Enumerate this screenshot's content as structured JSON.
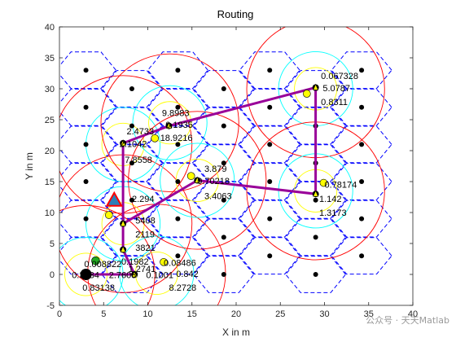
{
  "chart_data": {
    "type": "scatter",
    "title": "Routing",
    "xlabel": "X in m",
    "ylabel": "Y in m",
    "xlim": [
      0,
      40
    ],
    "ylim": [
      -5,
      40
    ],
    "xticks": [
      "0",
      "5",
      "10",
      "15",
      "20",
      "25",
      "30",
      "35",
      "40"
    ],
    "yticks": [
      "-5",
      "0",
      "5",
      "10",
      "15",
      "20",
      "25",
      "30",
      "35",
      "40"
    ],
    "grid": false,
    "colors": {
      "hex": "#0000ff",
      "range_outer": "#ff0000",
      "range_mid": "#00ffff",
      "range_inner": "#ffff00",
      "route": "#990099",
      "node": "#000000",
      "sink": "#2c7fb8",
      "sink_outline": "#ff0000",
      "aux_node": "#22aa22"
    },
    "hexagon_centers": [
      [
        3,
        33
      ],
      [
        3,
        27
      ],
      [
        3,
        21
      ],
      [
        3,
        15
      ],
      [
        3,
        9
      ],
      [
        3,
        3
      ],
      [
        8.2,
        30
      ],
      [
        8.2,
        24
      ],
      [
        8.2,
        18
      ],
      [
        8.2,
        12
      ],
      [
        8.2,
        6
      ],
      [
        8.2,
        0
      ],
      [
        13.4,
        33
      ],
      [
        13.4,
        27
      ],
      [
        13.4,
        21
      ],
      [
        13.4,
        15
      ],
      [
        13.4,
        9
      ],
      [
        13.4,
        3
      ],
      [
        18.6,
        30
      ],
      [
        18.6,
        24
      ],
      [
        18.6,
        18
      ],
      [
        18.6,
        12
      ],
      [
        18.6,
        6
      ],
      [
        18.6,
        0
      ],
      [
        23.8,
        33
      ],
      [
        23.8,
        27
      ],
      [
        23.8,
        21
      ],
      [
        23.8,
        15
      ],
      [
        23.8,
        9
      ],
      [
        23.8,
        3
      ],
      [
        29,
        30
      ],
      [
        29,
        24
      ],
      [
        29,
        18
      ],
      [
        29,
        12
      ],
      [
        29,
        6
      ],
      [
        29,
        0
      ],
      [
        34.2,
        33
      ],
      [
        34.2,
        27
      ],
      [
        34.2,
        21
      ],
      [
        34.2,
        15
      ],
      [
        34.2,
        9
      ],
      [
        34.2,
        3
      ]
    ],
    "node_points": [
      [
        3,
        33
      ],
      [
        3,
        27
      ],
      [
        3,
        21
      ],
      [
        3,
        15
      ],
      [
        3,
        9
      ],
      [
        8.2,
        30
      ],
      [
        8.2,
        24
      ],
      [
        8.2,
        18
      ],
      [
        8.2,
        12
      ],
      [
        13.4,
        33
      ],
      [
        13.4,
        27
      ],
      [
        13.4,
        21
      ],
      [
        13.4,
        15
      ],
      [
        13.4,
        9
      ],
      [
        13.4,
        3
      ],
      [
        18.6,
        30
      ],
      [
        18.6,
        24
      ],
      [
        18.6,
        18
      ],
      [
        18.6,
        12
      ],
      [
        18.6,
        6
      ],
      [
        18.6,
        0
      ],
      [
        23.8,
        33
      ],
      [
        23.8,
        27
      ],
      [
        23.8,
        21
      ],
      [
        23.8,
        15
      ],
      [
        23.8,
        9
      ],
      [
        23.8,
        3
      ],
      [
        29,
        30
      ],
      [
        29,
        24
      ],
      [
        29,
        18
      ],
      [
        29,
        12
      ],
      [
        29,
        6
      ],
      [
        29,
        0
      ],
      [
        34.2,
        33
      ],
      [
        34.2,
        27
      ],
      [
        34.2,
        21
      ],
      [
        34.2,
        15
      ],
      [
        34.2,
        9
      ],
      [
        34.2,
        3
      ]
    ],
    "sink": [
      6.2,
      12
    ],
    "range_circles": [
      {
        "center": [
          3,
          0
        ],
        "radii": [
          7.8,
          4.2,
          2.4
        ]
      },
      {
        "center": [
          11,
          0.2
        ],
        "radii": [
          7.8,
          4.2,
          2.4
        ]
      },
      {
        "center": [
          7.2,
          8.2
        ],
        "radii": [
          7.8,
          4.2,
          2.4
        ]
      },
      {
        "center": [
          7.2,
          21
        ],
        "radii": [
          7.8,
          4.2,
          2.4
        ]
      },
      {
        "center": [
          12.5,
          24.5
        ],
        "radii": [
          7.8,
          4.2,
          2.4
        ]
      },
      {
        "center": [
          15.6,
          15.2
        ],
        "radii": [
          7.8,
          4.2,
          2.4
        ]
      },
      {
        "center": [
          29,
          30
        ],
        "radii": [
          7.8,
          4.2,
          2.4
        ]
      },
      {
        "center": [
          29,
          13.5
        ],
        "radii": [
          7.8,
          4.2,
          2.4
        ]
      }
    ],
    "route": [
      [
        3,
        0
      ],
      [
        8.5,
        0
      ],
      [
        7.2,
        4
      ],
      [
        7.2,
        21.2
      ],
      [
        12.4,
        24
      ],
      [
        29,
        30.2
      ],
      [
        29,
        13
      ],
      [
        15.6,
        15.2
      ],
      [
        7.2,
        8.2
      ]
    ],
    "route_nodes": [
      [
        3,
        0
      ],
      [
        8.5,
        0
      ],
      [
        7.2,
        4
      ],
      [
        7.2,
        8.2
      ],
      [
        7.2,
        21.2
      ],
      [
        12.4,
        24
      ],
      [
        29,
        30.2
      ],
      [
        29,
        13
      ],
      [
        15.6,
        15.2
      ]
    ],
    "yellow_markers": [
      [
        5.6,
        9.6
      ],
      [
        10.8,
        22
      ],
      [
        14.9,
        15.9
      ],
      [
        28,
        29.2
      ],
      [
        29.9,
        14.8
      ],
      [
        11.8,
        2
      ]
    ],
    "aux_nodes": [
      [
        4.1,
        2.2
      ]
    ],
    "labels": [
      {
        "text": "0.067328",
        "x": 29.6,
        "y": 31.6
      },
      {
        "text": "5.0787",
        "x": 29.8,
        "y": 29.6
      },
      {
        "text": "0.8311",
        "x": 29.6,
        "y": 27.4
      },
      {
        "text": "9.8983",
        "x": 11.6,
        "y": 25.6
      },
      {
        "text": "0.1935",
        "x": 12.0,
        "y": 23.7
      },
      {
        "text": "2.4733",
        "x": 7.6,
        "y": 22.6
      },
      {
        "text": "18.9216",
        "x": 11.4,
        "y": 21.6
      },
      {
        "text": "2.1042",
        "x": 6.8,
        "y": 20.6
      },
      {
        "text": "7.8558",
        "x": 7.4,
        "y": 18.0
      },
      {
        "text": "3.879",
        "x": 16.4,
        "y": 16.6
      },
      {
        "text": "0.70218",
        "x": 15.6,
        "y": 14.6
      },
      {
        "text": "0.78174",
        "x": 30.0,
        "y": 14.0
      },
      {
        "text": "3.4063",
        "x": 16.4,
        "y": 12.2
      },
      {
        "text": "2.294",
        "x": 8.2,
        "y": 11.7
      },
      {
        "text": "1.142",
        "x": 29.4,
        "y": 11.7
      },
      {
        "text": "1.3173",
        "x": 29.4,
        "y": 9.5
      },
      {
        "text": "5408",
        "x": 8.6,
        "y": 8.2
      },
      {
        "text": "2119",
        "x": 8.6,
        "y": 6.0
      },
      {
        "text": "3821",
        "x": 8.6,
        "y": 3.8
      },
      {
        "text": "0.1982",
        "x": 7.0,
        "y": 1.6
      },
      {
        "text": "0.08486",
        "x": 11.8,
        "y": 1.4
      },
      {
        "text": "0.008822",
        "x": 2.8,
        "y": 1.2
      },
      {
        "text": "1.2741",
        "x": 7.8,
        "y": 0.4
      },
      {
        "text": "0.3134",
        "x": 1.4,
        "y": -0.6
      },
      {
        "text": "2.7608",
        "x": 5.6,
        "y": -0.6
      },
      {
        "text": "0.1001",
        "x": 9.8,
        "y": -0.6
      },
      {
        "text": "0.842",
        "x": 13.2,
        "y": -0.4
      },
      {
        "text": "0.83138",
        "x": 2.6,
        "y": -2.6
      },
      {
        "text": "8.2728",
        "x": 12.4,
        "y": -2.6
      }
    ],
    "watermark": "公众号 · 天天Matlab"
  }
}
